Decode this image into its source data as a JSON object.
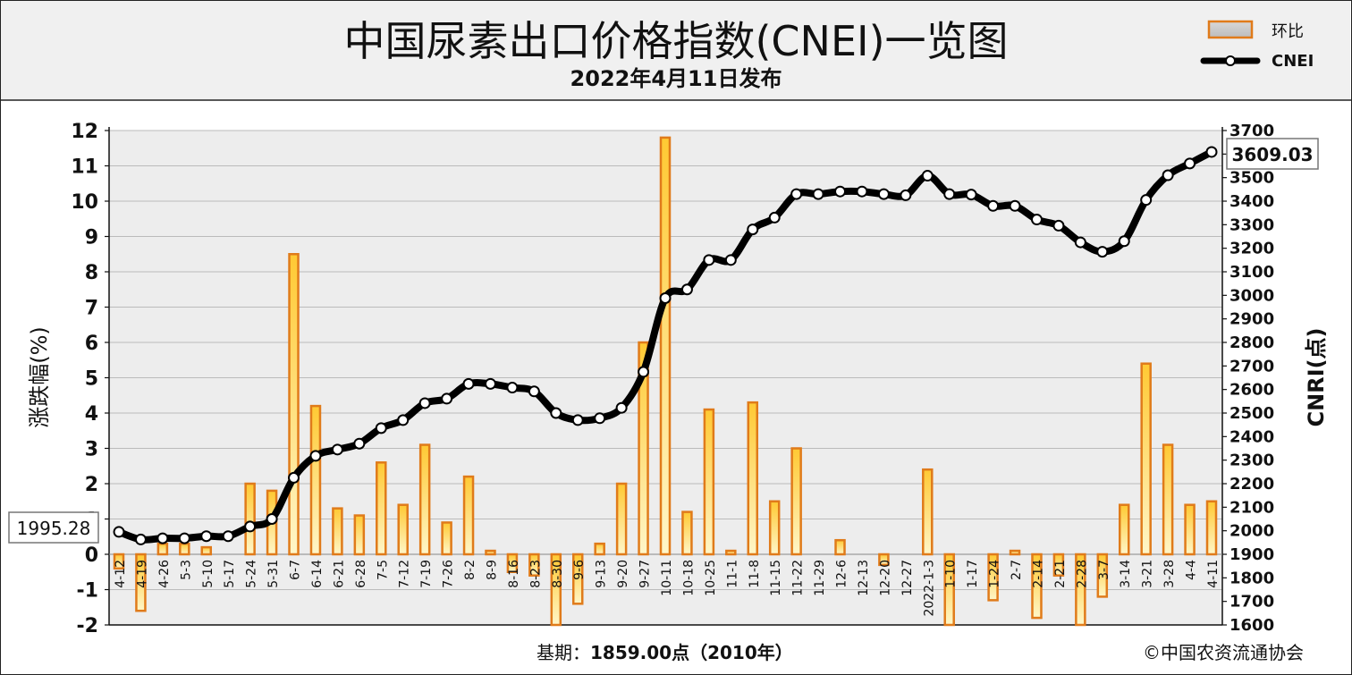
{
  "chart_data": {
    "type": "bar",
    "title": "中国尿素出口价格指数(CNEI)一览图",
    "subtitle": "2022年4月11日发布",
    "ylabel_left": "涨跌幅(%)",
    "ylabel_right": "CNRI(点)",
    "ylim_left": [
      -2,
      12
    ],
    "ylim_right": [
      1600,
      3700
    ],
    "left_ticks": [
      -2,
      -1,
      0,
      1,
      2,
      3,
      4,
      5,
      6,
      7,
      8,
      9,
      10,
      11,
      12
    ],
    "right_ticks": [
      1600,
      1700,
      1800,
      1900,
      2000,
      2100,
      2200,
      2300,
      2400,
      2500,
      2600,
      2700,
      2800,
      2900,
      3000,
      3100,
      3200,
      3300,
      3400,
      3500,
      3600,
      3700
    ],
    "categories": [
      "4-12",
      "4-19",
      "4-26",
      "5-3",
      "5-10",
      "5-17",
      "5-24",
      "5-31",
      "6-7",
      "6-14",
      "6-21",
      "6-28",
      "7-5",
      "7-12",
      "7-19",
      "7-26",
      "8-2",
      "8-9",
      "8-16",
      "8-23",
      "8-30",
      "9-6",
      "9-13",
      "9-20",
      "9-27",
      "10-11",
      "10-18",
      "10-25",
      "11-1",
      "11-8",
      "11-15",
      "11-22",
      "11-29",
      "12-6",
      "12-13",
      "12-20",
      "12-27",
      "2022-1-3",
      "1-10",
      "1-17",
      "1-24",
      "2-7",
      "2-14",
      "2-21",
      "2-28",
      "3-7",
      "3-14",
      "3-21",
      "3-28",
      "4-4",
      "4-11"
    ],
    "grid": true,
    "legend_position": "top-right",
    "series": [
      {
        "name": "环比",
        "type": "bar",
        "axis": "left",
        "values": [
          -0.4,
          -1.6,
          0.3,
          0.3,
          0.2,
          0.0,
          2.0,
          1.8,
          8.5,
          4.2,
          1.3,
          1.1,
          2.6,
          1.4,
          3.1,
          0.9,
          2.2,
          0.1,
          -0.5,
          -0.6,
          -2.0,
          -1.4,
          0.3,
          2.0,
          6.0,
          11.8,
          1.2,
          4.1,
          0.1,
          4.3,
          1.5,
          3.0,
          0.0,
          0.4,
          0.0,
          -0.3,
          0.0,
          2.4,
          -2.0,
          0.0,
          -1.3,
          0.1,
          -1.8,
          -0.6,
          -2.0,
          -1.2,
          1.4,
          5.4,
          3.1,
          1.4,
          1.5
        ]
      },
      {
        "name": "CNEI",
        "type": "line",
        "axis": "right",
        "values": [
          1995.28,
          1963,
          1968,
          1968,
          1977,
          1977,
          2018,
          2050,
          2225,
          2318,
          2345,
          2370,
          2436,
          2470,
          2542,
          2561,
          2624,
          2624,
          2608,
          2592,
          2500,
          2470,
          2478,
          2522,
          2675,
          2988,
          3025,
          3150,
          3150,
          3280,
          3330,
          3430,
          3430,
          3441,
          3441,
          3430,
          3425,
          3508,
          3430,
          3428,
          3380,
          3380,
          3322,
          3296,
          3225,
          3185,
          3230,
          3405,
          3510,
          3560,
          3609.03
        ]
      }
    ],
    "annotations": {
      "first_value": "1995.28",
      "last_value": "3609.03"
    }
  },
  "footer": {
    "base_label": "基期：",
    "base_value": "1859.00点",
    "base_year": "（2010年）",
    "copyright": "©中国农资流通协会"
  },
  "colors": {
    "bar_edge": "#e07b1a",
    "bar_fill_top": "#ffc933",
    "bar_fill_bottom": "#fff6c8",
    "line": "#000000",
    "plot_bg": "#ededed",
    "header_bg": "#f0f0f0",
    "grid": "#bbbbbb"
  }
}
